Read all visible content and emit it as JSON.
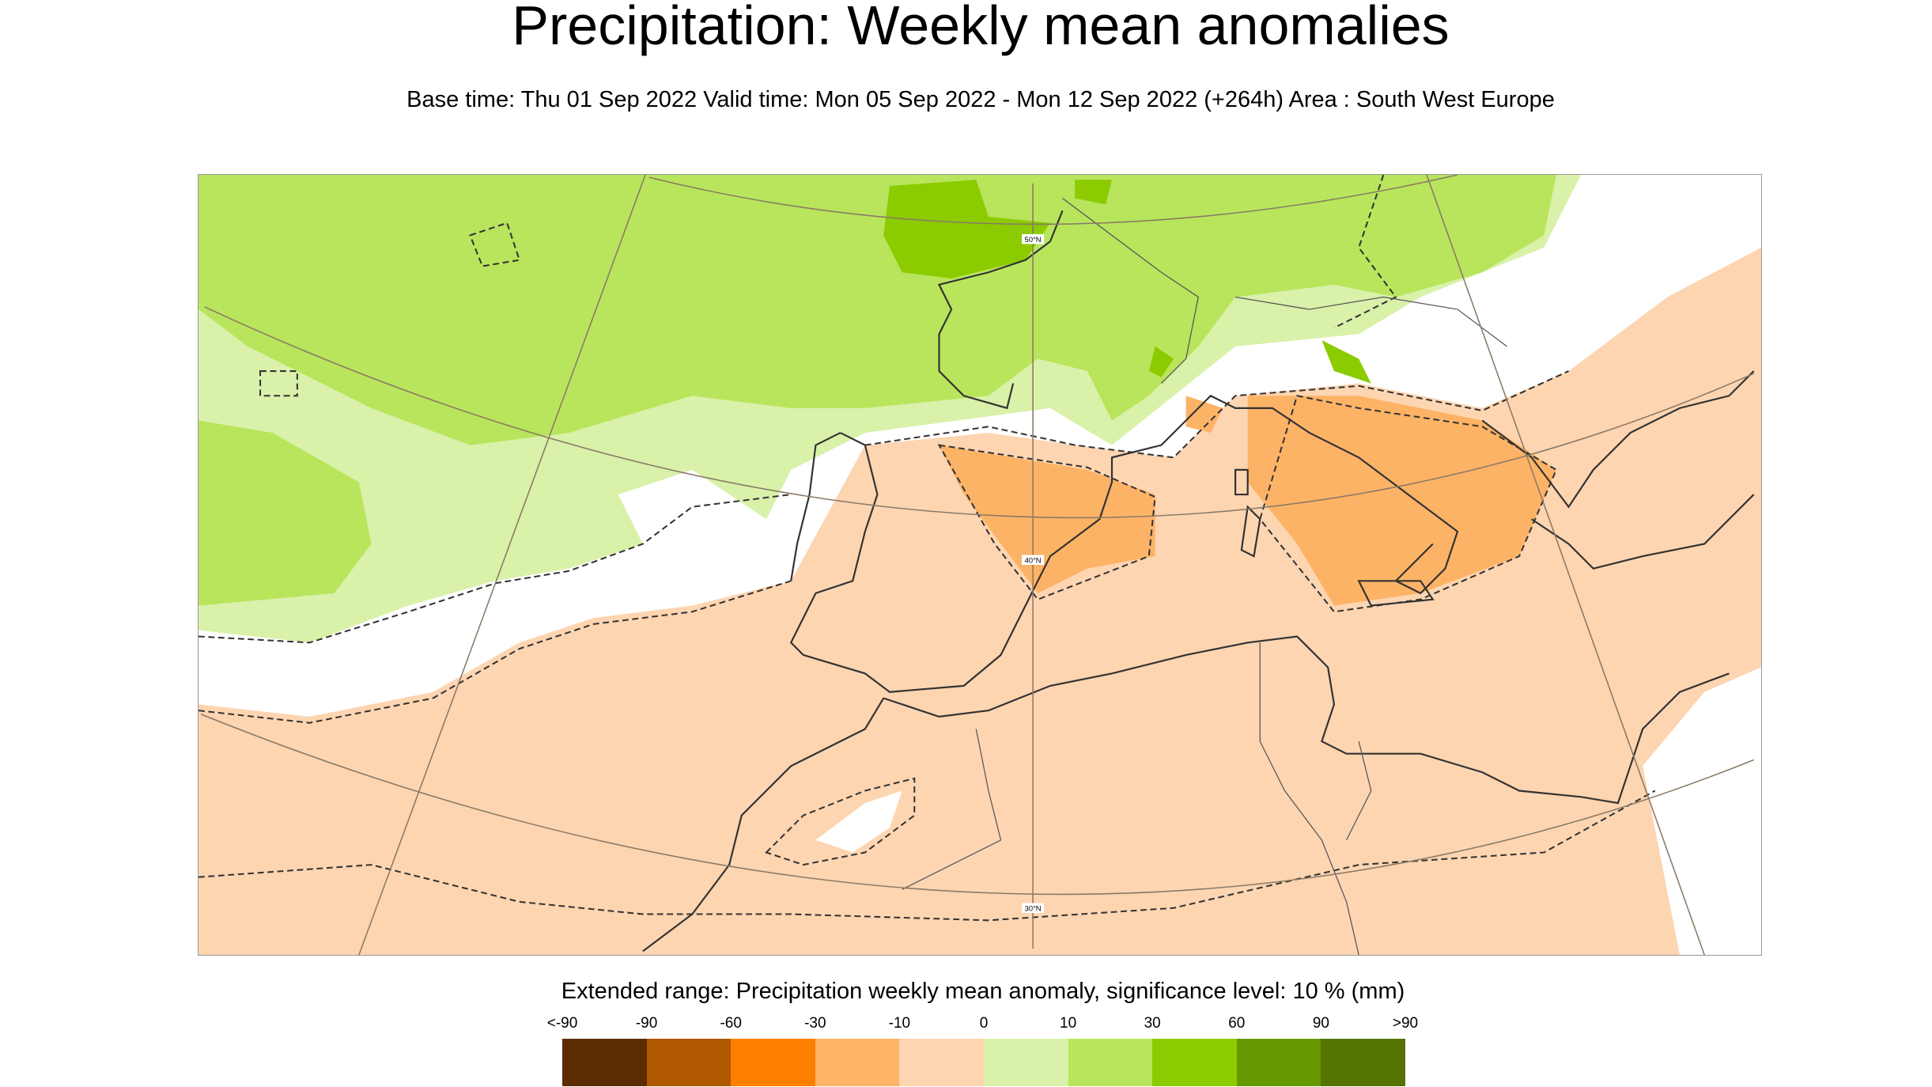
{
  "header": {
    "title": "Precipitation: Weekly mean anomalies",
    "subtitle": "Base time: Thu 01 Sep 2022 Valid time: Mon 05 Sep 2022 - Mon 12 Sep 2022 (+264h) Area : South West Europe"
  },
  "map": {
    "area": "South West Europe",
    "latitude_labels": [
      "50°N",
      "40°N",
      "30°N"
    ],
    "colors": {
      "background": "#fdd5b1",
      "neutral": "#ffffff",
      "light_green": "#d9f1a9",
      "green": "#b8e55c",
      "dark_green": "#8bcb00",
      "orange": "#fdb366"
    }
  },
  "legend": {
    "title": "Extended range: Precipitation weekly mean anomaly, significance level: 10 % (mm)",
    "labels": [
      "<-90",
      "-90",
      "-60",
      "-30",
      "-10",
      "0",
      "10",
      "30",
      "60",
      "90",
      ">90"
    ],
    "colors": [
      "#5c2c00",
      "#b05800",
      "#ff8000",
      "#ffb366",
      "#fdd5b1",
      "#d9f1a9",
      "#b8e55c",
      "#8bcb00",
      "#669900",
      "#547300"
    ]
  }
}
